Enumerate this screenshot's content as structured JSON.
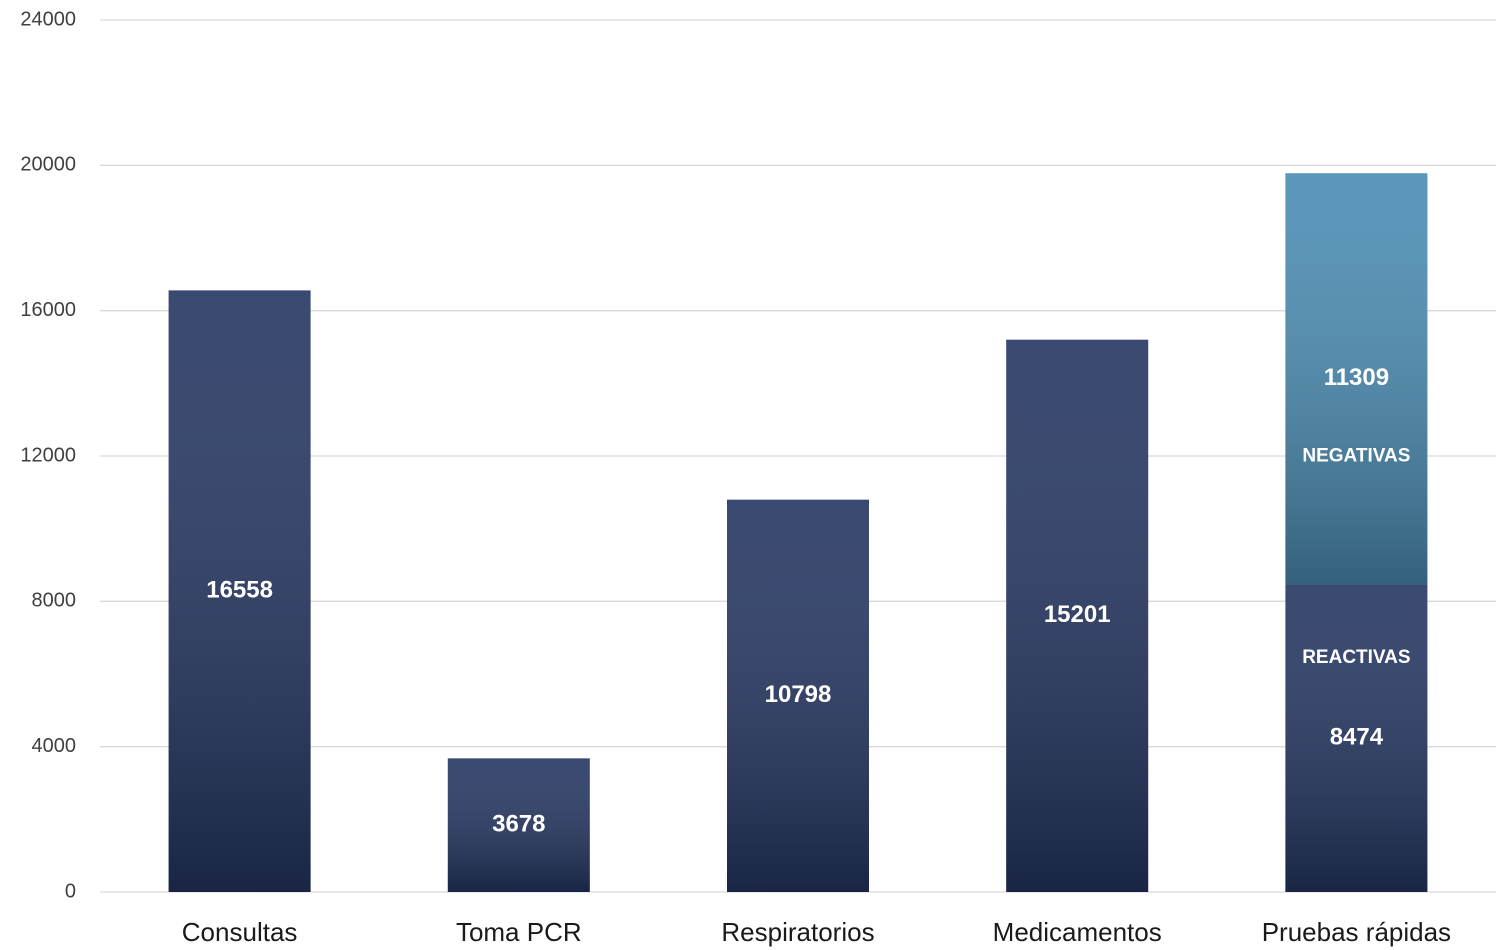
{
  "chart_data": {
    "type": "stacked-bar",
    "categories": [
      "Consultas",
      "Toma PCR",
      "Respiratorios",
      "Medicamentos",
      "Pruebas rápidas"
    ],
    "series": [
      {
        "name": "REACTIVAS",
        "color": "#243561",
        "values": [
          16558,
          3678,
          10798,
          15201,
          8474
        ]
      },
      {
        "name": "NEGATIVAS",
        "color": "#4a8bb2",
        "values": [
          null,
          null,
          null,
          null,
          11309
        ]
      }
    ],
    "ylim": [
      0,
      24000
    ],
    "yticks": [
      0,
      4000,
      8000,
      12000,
      16000,
      20000,
      24000
    ],
    "grid": true
  }
}
